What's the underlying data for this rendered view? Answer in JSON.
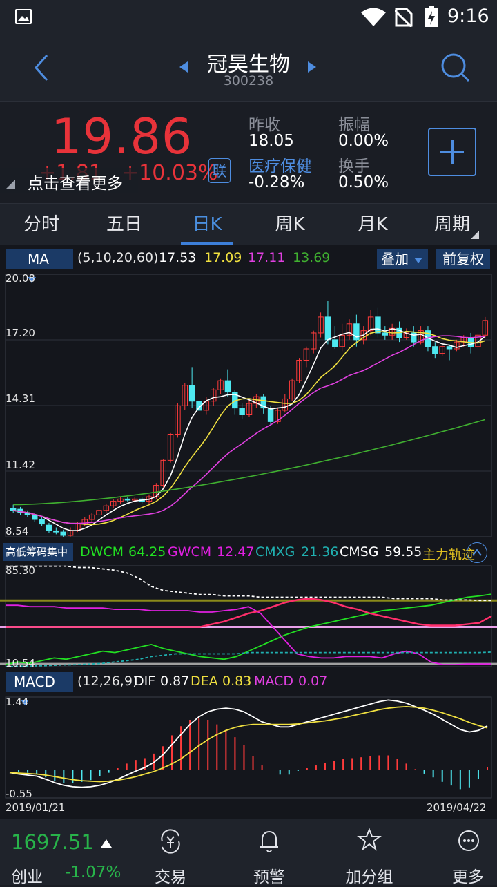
{
  "status_bar": {
    "time": "9:16"
  },
  "header": {
    "stock_name": "冠昊生物",
    "stock_code": "300238"
  },
  "quote": {
    "price": "19.86",
    "change": "+1.81",
    "change_pct": "+10.03%",
    "hint": "点击查看更多",
    "link_badge": "联",
    "prev_close_label": "昨收",
    "prev_close": "18.05",
    "sector_label": "医疗保健",
    "sector_change": "-0.28%",
    "amplitude_label": "振幅",
    "amplitude": "0.00%",
    "turnover_label": "换手",
    "turnover": "0.50%",
    "add_icon": "plus-icon"
  },
  "tabs": [
    {
      "label": "分时"
    },
    {
      "label": "五日"
    },
    {
      "label": "日K"
    },
    {
      "label": "周K"
    },
    {
      "label": "月K"
    },
    {
      "label": "周期"
    }
  ],
  "ma_bar": {
    "indicator": "MA",
    "params": "(5,10,20,60)",
    "ma5": "17.53",
    "ma10": "17.09",
    "ma20": "17.11",
    "ma60": "13.69",
    "overlay_label": "叠加",
    "adjust_label": "前复权",
    "colors": {
      "ma5": "#ffffff",
      "ma10": "#f0e040",
      "ma20": "#e040e0",
      "ma60": "#40b030"
    }
  },
  "price_axis": [
    "20.08",
    "17.20",
    "14.31",
    "11.42",
    "8.54"
  ],
  "chip_bar": {
    "indicator": "高低筹码集中",
    "dwcm_label": "DWCM",
    "dwcm": "64.25",
    "gwcm_label": "GWCM",
    "gwcm": "12.47",
    "cmxg_label": "CMXG",
    "cmxg": "21.36",
    "cmsg_label": "CMSG",
    "cmsg": "59.55",
    "extra": "主力轨迹",
    "axis_top": "85.30",
    "axis_bottom": "10.54"
  },
  "macd_bar": {
    "indicator": "MACD",
    "params": "(12,26,9)",
    "dif_label": "DIF",
    "dif": "0.87",
    "dea_label": "DEA",
    "dea": "0.83",
    "macd_label": "MACD",
    "macd": "0.07",
    "axis_top": "1.44",
    "axis_bottom": "-0.55"
  },
  "dates": {
    "start": "2019/01/21",
    "end": "2019/04/22"
  },
  "bottom_nav": {
    "index_value": "1697.51",
    "index_name": "创业",
    "index_change": "-1.07%",
    "items": [
      {
        "label": "交易",
        "icon": "trade-yen-icon"
      },
      {
        "label": "预警",
        "icon": "bell-icon"
      },
      {
        "label": "加分组",
        "icon": "star-icon"
      },
      {
        "label": "更多",
        "icon": "more-dots-icon"
      }
    ]
  },
  "chart_data": [
    {
      "type": "candlestick",
      "title": "日K",
      "ylim": [
        8.54,
        20.08
      ],
      "x_range": [
        "2019/01/21",
        "2019/04/22"
      ],
      "candles": [
        [
          9.8,
          9.7,
          9.95,
          9.6
        ],
        [
          9.75,
          9.6,
          9.85,
          9.5
        ],
        [
          9.6,
          9.5,
          9.7,
          9.4
        ],
        [
          9.5,
          9.3,
          9.6,
          9.2
        ],
        [
          9.3,
          9.1,
          9.4,
          9.0
        ],
        [
          9.05,
          8.8,
          9.15,
          8.7
        ],
        [
          8.8,
          8.75,
          8.95,
          8.65
        ],
        [
          8.75,
          8.6,
          8.85,
          8.54
        ],
        [
          8.6,
          8.8,
          8.95,
          8.55
        ],
        [
          8.8,
          9.1,
          9.2,
          8.75
        ],
        [
          9.1,
          9.3,
          9.4,
          9.0
        ],
        [
          9.3,
          9.5,
          9.6,
          9.2
        ],
        [
          9.5,
          9.7,
          9.8,
          9.4
        ],
        [
          9.7,
          9.9,
          10.0,
          9.6
        ],
        [
          9.9,
          10.1,
          10.2,
          9.8
        ],
        [
          10.1,
          10.2,
          10.3,
          10.0
        ],
        [
          10.2,
          10.15,
          10.3,
          10.05
        ],
        [
          10.15,
          10.2,
          10.3,
          10.05
        ],
        [
          10.2,
          10.1,
          10.3,
          10.0
        ],
        [
          10.1,
          10.3,
          10.4,
          10.0
        ],
        [
          10.3,
          10.8,
          10.9,
          10.2
        ],
        [
          10.8,
          11.9,
          11.95,
          10.7
        ],
        [
          11.9,
          13.05,
          13.1,
          11.8
        ],
        [
          13.05,
          14.3,
          14.4,
          12.9
        ],
        [
          14.3,
          15.2,
          15.3,
          14.1
        ],
        [
          15.2,
          14.5,
          16.0,
          14.2
        ],
        [
          14.5,
          14.1,
          14.8,
          13.8
        ],
        [
          14.1,
          14.5,
          14.7,
          13.9
        ],
        [
          14.5,
          15.0,
          15.1,
          14.3
        ],
        [
          15.0,
          15.4,
          15.5,
          14.8
        ],
        [
          15.4,
          14.9,
          15.9,
          14.7
        ],
        [
          14.9,
          14.2,
          15.0,
          13.9
        ],
        [
          14.2,
          13.9,
          14.4,
          13.7
        ],
        [
          13.9,
          14.4,
          14.6,
          13.8
        ],
        [
          14.4,
          14.7,
          14.8,
          14.2
        ],
        [
          14.7,
          14.2,
          14.8,
          13.95
        ],
        [
          14.2,
          13.6,
          14.3,
          13.4
        ],
        [
          13.6,
          14.1,
          14.2,
          13.5
        ],
        [
          14.1,
          14.6,
          14.8,
          14.0
        ],
        [
          14.6,
          15.4,
          15.5,
          14.5
        ],
        [
          15.4,
          16.3,
          16.4,
          15.3
        ],
        [
          16.3,
          16.8,
          16.9,
          16.0
        ],
        [
          16.8,
          17.5,
          17.6,
          16.6
        ],
        [
          17.5,
          18.2,
          18.4,
          17.3
        ],
        [
          18.2,
          17.2,
          18.9,
          17.0
        ],
        [
          17.2,
          16.9,
          17.8,
          16.8
        ],
        [
          16.9,
          17.4,
          17.9,
          16.7
        ],
        [
          17.4,
          17.9,
          18.1,
          17.2
        ],
        [
          17.9,
          17.2,
          18.3,
          16.9
        ],
        [
          17.2,
          17.6,
          17.8,
          17.0
        ],
        [
          17.6,
          18.2,
          18.5,
          17.4
        ],
        [
          18.2,
          17.5,
          18.6,
          17.3
        ],
        [
          17.5,
          17.4,
          17.8,
          17.2
        ],
        [
          17.4,
          17.7,
          17.9,
          17.2
        ],
        [
          17.7,
          17.3,
          18.0,
          17.1
        ],
        [
          17.3,
          17.5,
          17.7,
          17.2
        ],
        [
          17.5,
          17.1,
          17.8,
          16.9
        ],
        [
          17.1,
          17.6,
          17.8,
          17.0
        ],
        [
          17.6,
          16.9,
          17.8,
          16.7
        ],
        [
          16.9,
          16.6,
          17.1,
          16.4
        ],
        [
          16.6,
          16.9,
          17.0,
          16.5
        ],
        [
          16.9,
          16.8,
          17.0,
          16.3
        ],
        [
          16.8,
          17.1,
          17.2,
          16.7
        ],
        [
          17.1,
          17.3,
          17.4,
          16.9
        ],
        [
          17.3,
          16.9,
          17.5,
          16.6
        ],
        [
          16.9,
          17.4,
          17.5,
          16.8
        ],
        [
          17.4,
          18.05,
          18.2,
          17.3
        ]
      ],
      "series": [
        {
          "name": "MA5",
          "color": "#ffffff"
        },
        {
          "name": "MA10",
          "color": "#f0e040"
        },
        {
          "name": "MA20",
          "color": "#e040e0"
        },
        {
          "name": "MA60",
          "color": "#40b030"
        }
      ]
    },
    {
      "type": "line",
      "title": "高低筹码集中",
      "ylim": [
        10.54,
        85.3
      ],
      "series": [
        {
          "name": "DWCM",
          "color": "#22e022",
          "values": [
            12,
            14,
            13,
            15,
            17,
            16,
            18,
            20,
            22,
            21,
            23,
            25,
            27,
            24,
            22,
            20,
            18,
            17,
            16,
            18,
            22,
            26,
            30,
            34,
            37,
            40,
            42,
            44,
            46,
            48,
            50,
            52,
            53,
            54,
            55,
            56,
            58,
            60,
            62,
            63,
            64.25
          ]
        },
        {
          "name": "GWCM",
          "color": "#e020e0",
          "values": [
            56,
            56,
            55,
            55,
            55,
            54,
            54,
            54,
            54,
            53,
            53,
            53,
            52,
            52,
            52,
            52,
            51,
            51,
            52,
            53,
            55,
            50,
            40,
            30,
            20,
            18,
            17,
            17,
            18,
            18,
            18,
            17,
            20,
            22,
            20,
            14,
            12,
            12,
            12.5,
            12.5,
            12.47
          ]
        },
        {
          "name": "CMXG",
          "color": "#20b0b0",
          "values": [
            10.6,
            10.8,
            11,
            11.2,
            11.5,
            11.8,
            12,
            12.5,
            13,
            14,
            15,
            16,
            18,
            19,
            20,
            20,
            20,
            20,
            20,
            20,
            21,
            21,
            21,
            21,
            21,
            21,
            21,
            21,
            21,
            21,
            21,
            21,
            21,
            21,
            21,
            21,
            21,
            21,
            21,
            21,
            21.36
          ]
        },
        {
          "name": "CMSG",
          "color": "#ffffff",
          "values": [
            85,
            85,
            85,
            85,
            85,
            85,
            84,
            84,
            83,
            82,
            80,
            76,
            70,
            67,
            66,
            65,
            64,
            64,
            63,
            63,
            63,
            62,
            62,
            62,
            62,
            62,
            62,
            62,
            62,
            62,
            62,
            62,
            61,
            61,
            61,
            61,
            60,
            60,
            60,
            59.6,
            59.55
          ]
        },
        {
          "name": "主力轨迹",
          "color": "#ff2f6b",
          "values": [
            40,
            40,
            40,
            40,
            40,
            40,
            40,
            40,
            40,
            40,
            40,
            40,
            40,
            40,
            40,
            40,
            40,
            42,
            44,
            47,
            50,
            52,
            55,
            58,
            60,
            61,
            60,
            58,
            55,
            53,
            50,
            48,
            46,
            44,
            42,
            41,
            41,
            41,
            42,
            43,
            48
          ]
        }
      ]
    },
    {
      "type": "bar",
      "title": "MACD",
      "ylim": [
        -0.55,
        1.44
      ],
      "series": [
        {
          "name": "DIF",
          "color": "#ffffff",
          "values": [
            -0.05,
            -0.08,
            -0.1,
            -0.12,
            -0.18,
            -0.25,
            -0.3,
            -0.33,
            -0.34,
            -0.33,
            -0.3,
            -0.25,
            -0.18,
            -0.1,
            -0.02,
            0.05,
            0.15,
            0.3,
            0.5,
            0.7,
            0.9,
            1.05,
            1.15,
            1.2,
            1.22,
            1.2,
            1.15,
            1.05,
            0.95,
            0.9,
            0.85,
            0.85,
            0.9,
            0.95,
            1.0,
            1.05,
            1.1,
            1.15,
            1.2,
            1.25,
            1.3,
            1.35,
            1.38,
            1.36,
            1.32,
            1.25,
            1.18,
            1.1,
            1.0,
            0.9,
            0.8,
            0.75,
            0.78,
            0.87
          ]
        },
        {
          "name": "DEA",
          "color": "#f0e040",
          "values": [
            -0.05,
            -0.06,
            -0.07,
            -0.08,
            -0.1,
            -0.13,
            -0.16,
            -0.19,
            -0.21,
            -0.22,
            -0.23,
            -0.22,
            -0.2,
            -0.17,
            -0.13,
            -0.08,
            -0.03,
            0.04,
            0.12,
            0.22,
            0.35,
            0.48,
            0.6,
            0.7,
            0.78,
            0.84,
            0.88,
            0.9,
            0.9,
            0.9,
            0.9,
            0.9,
            0.91,
            0.93,
            0.95,
            0.97,
            1.0,
            1.03,
            1.07,
            1.11,
            1.15,
            1.19,
            1.22,
            1.24,
            1.25,
            1.24,
            1.22,
            1.18,
            1.13,
            1.07,
            1.01,
            0.94,
            0.88,
            0.83
          ]
        },
        {
          "name": "MACD",
          "color": "#e040e0",
          "values": [
            0.0,
            -0.04,
            -0.06,
            -0.08,
            -0.16,
            -0.24,
            -0.28,
            -0.28,
            -0.26,
            -0.22,
            -0.14,
            -0.06,
            0.04,
            0.14,
            0.22,
            0.26,
            0.36,
            0.52,
            0.76,
            0.96,
            1.1,
            1.14,
            1.1,
            1.0,
            0.88,
            0.72,
            0.54,
            0.3,
            0.1,
            0.0,
            -0.1,
            -0.1,
            -0.02,
            0.04,
            0.1,
            0.16,
            0.2,
            0.24,
            0.26,
            0.28,
            0.3,
            0.32,
            0.32,
            0.24,
            0.14,
            0.02,
            -0.08,
            -0.16,
            -0.26,
            -0.34,
            -0.42,
            -0.38,
            -0.2,
            0.07
          ]
        }
      ]
    }
  ]
}
